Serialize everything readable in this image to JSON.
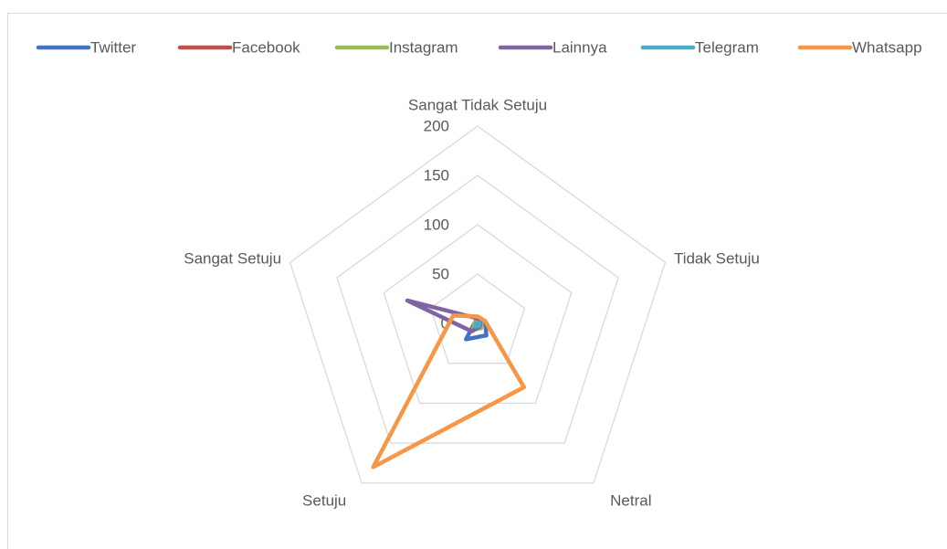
{
  "chart_data": {
    "type": "radar",
    "categories": [
      "Sangat Tidak Setuju",
      "Tidak Setuju",
      "Netral",
      "Setuju",
      "Sangat Setuju"
    ],
    "series": [
      {
        "name": "Twitter",
        "color": "#4472c4",
        "values": [
          5,
          8,
          15,
          20,
          3
        ]
      },
      {
        "name": "Facebook",
        "color": "#c0504d",
        "values": [
          2,
          3,
          5,
          6,
          2
        ]
      },
      {
        "name": "Instagram",
        "color": "#9bbb59",
        "values": [
          2,
          4,
          6,
          8,
          3
        ]
      },
      {
        "name": "Lainnya",
        "color": "#8064a2",
        "values": [
          5,
          3,
          4,
          10,
          75
        ]
      },
      {
        "name": "Telegram",
        "color": "#4bacc6",
        "values": [
          1,
          2,
          3,
          4,
          1
        ]
      },
      {
        "name": "Whatsapp",
        "color": "#f79646",
        "values": [
          7,
          8,
          80,
          180,
          26
        ]
      }
    ],
    "ylim": [
      0,
      200
    ],
    "yticks": [
      0,
      50,
      100,
      150,
      200
    ],
    "grid": true,
    "legend": "top"
  }
}
